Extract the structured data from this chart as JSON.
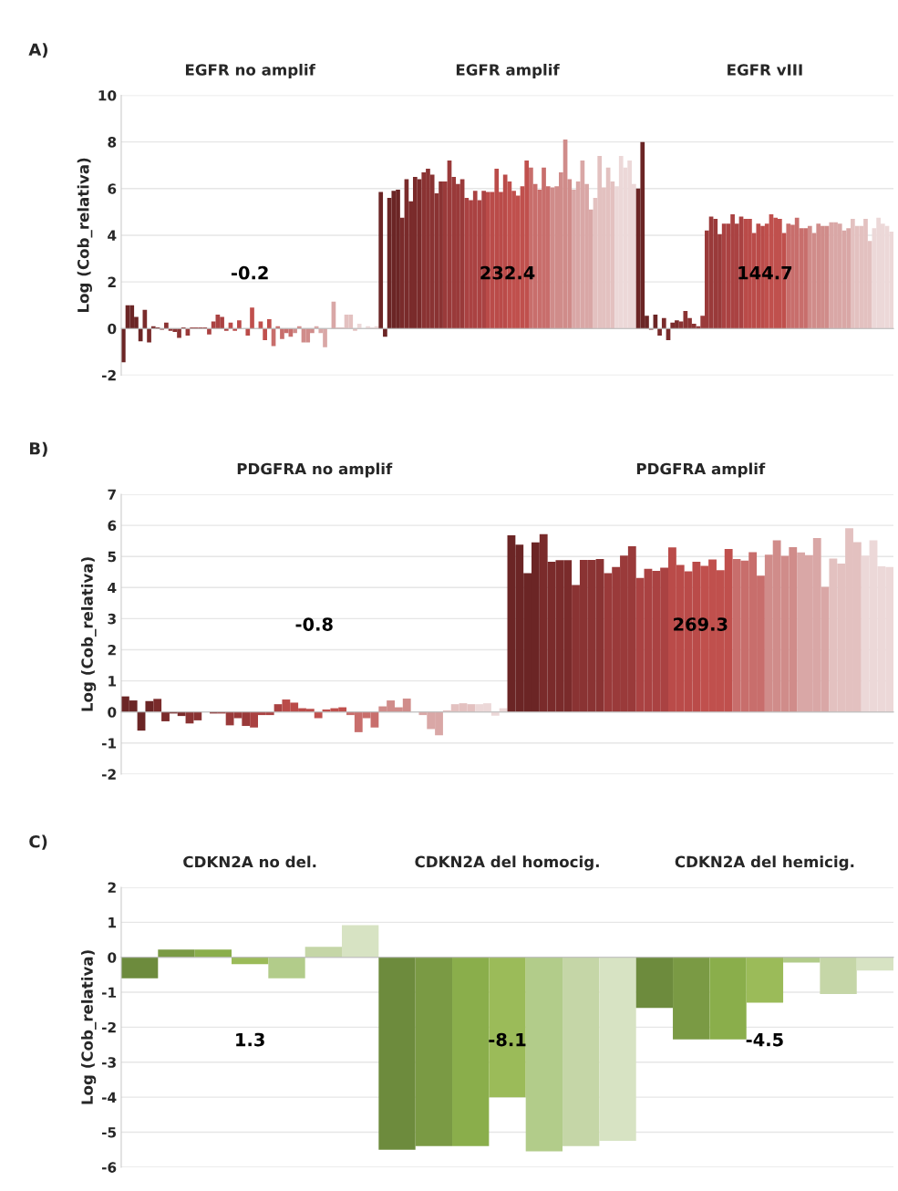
{
  "chart_data": [
    {
      "type": "bar",
      "title": "A)",
      "ylabel": "Log (Cob_relativa)",
      "ylim": [
        -2,
        10
      ],
      "yticks": [
        -2,
        0,
        2,
        4,
        6,
        8,
        10
      ],
      "grid": "y",
      "tick_labels": "y",
      "categories": [
        null,
        null,
        null,
        null,
        null,
        null,
        null,
        null,
        null,
        null,
        null,
        null,
        null,
        null,
        null,
        null,
        null,
        null,
        null,
        null,
        null,
        null,
        null,
        null,
        null,
        null,
        null,
        null,
        null,
        null,
        null,
        null,
        null,
        null,
        null,
        null,
        null,
        null,
        null,
        null,
        null,
        null,
        null,
        null,
        null,
        null,
        null,
        null,
        null,
        null,
        null,
        null,
        null,
        null,
        null,
        null,
        null,
        null,
        null,
        null,
        null,
        null,
        null,
        null,
        null,
        null,
        null,
        null,
        null,
        null,
        null,
        null,
        null,
        null,
        null,
        null,
        null,
        null,
        null,
        null,
        null,
        null,
        null,
        null,
        null,
        null,
        null,
        null,
        null,
        null,
        null,
        null,
        null,
        null,
        null,
        null,
        null,
        null,
        null,
        null,
        null,
        null,
        null,
        null,
        null,
        null,
        null,
        null,
        null,
        null,
        null,
        null,
        null,
        null,
        null,
        null,
        null,
        null,
        null,
        null,
        null,
        null,
        null,
        null,
        null,
        null,
        null,
        null,
        null,
        null,
        null,
        null,
        null,
        null,
        null,
        null,
        null,
        null,
        null,
        null,
        null,
        null,
        null,
        null,
        null,
        null,
        null,
        null,
        null,
        null,
        null,
        null,
        null,
        null,
        null,
        null,
        null,
        null,
        null,
        null,
        null,
        null,
        null,
        null,
        null,
        null,
        null,
        null,
        null,
        null,
        null,
        null,
        null,
        null,
        null,
        null,
        null,
        null,
        null,
        null
      ],
      "values": [
        -1.45,
        1.0,
        1.0,
        0.5,
        -0.55,
        0.8,
        -0.6,
        0.1,
        0.05,
        -0.05,
        0.25,
        -0.1,
        -0.15,
        -0.4,
        0.05,
        -0.3,
        0.05,
        0.05,
        0.05,
        0.05,
        -0.25,
        0.3,
        0.6,
        0.5,
        -0.1,
        0.25,
        -0.1,
        0.35,
        0.0,
        -0.3,
        0.9,
        0.0,
        0.3,
        -0.5,
        0.4,
        -0.75,
        0.1,
        -0.45,
        -0.2,
        -0.35,
        -0.2,
        0.1,
        -0.6,
        -0.6,
        -0.2,
        0.1,
        -0.2,
        -0.8,
        0.0,
        1.15,
        0.05,
        0.05,
        0.6,
        0.6,
        -0.1,
        0.2,
        0.0,
        0.1,
        0.05,
        0.1,
        5.85,
        -0.35,
        5.6,
        5.9,
        5.95,
        4.75,
        6.4,
        5.45,
        6.5,
        6.4,
        6.7,
        6.85,
        6.6,
        5.8,
        6.3,
        6.3,
        7.2,
        6.5,
        6.2,
        6.4,
        5.6,
        5.5,
        5.9,
        5.5,
        5.9,
        5.85,
        5.85,
        6.85,
        5.85,
        6.6,
        6.3,
        5.9,
        5.7,
        6.1,
        7.2,
        6.9,
        6.2,
        5.95,
        6.9,
        6.1,
        6.05,
        6.1,
        6.7,
        8.1,
        6.4,
        5.95,
        6.3,
        7.2,
        6.2,
        5.1,
        5.6,
        7.4,
        6.05,
        6.9,
        6.3,
        6.1,
        7.4,
        6.9,
        7.2,
        6.2,
        6.0,
        8.0,
        0.55,
        -0.05,
        0.6,
        -0.3,
        0.45,
        -0.5,
        0.25,
        0.35,
        0.3,
        0.75,
        0.45,
        0.2,
        0.1,
        0.55,
        4.2,
        4.8,
        4.7,
        4.05,
        4.5,
        4.5,
        4.9,
        4.5,
        4.8,
        4.7,
        4.7,
        4.1,
        4.5,
        4.4,
        4.5,
        4.9,
        4.75,
        4.7,
        4.1,
        4.5,
        4.45,
        4.75,
        4.3,
        4.3,
        4.4,
        4.1,
        4.5,
        4.4,
        4.4,
        4.55,
        4.55,
        4.5,
        4.2,
        4.3,
        4.7,
        4.4,
        4.4,
        4.7,
        3.75,
        4.3,
        4.75,
        4.5,
        4.4,
        4.15
      ],
      "colors": [
        "#6b2525",
        "#6b2525",
        "#6b2525",
        "#6b2525",
        "#6b2525",
        "#7a2b2b",
        "#7a2b2b",
        "#7a2b2b",
        "#7a2b2b",
        "#7a2b2b",
        "#8a3333",
        "#8a3333",
        "#8a3333",
        "#8a3333",
        "#8a3333",
        "#9a3a3a",
        "#9a3a3a",
        "#9a3a3a",
        "#9a3a3a",
        "#9a3a3a",
        "#aa4242",
        "#aa4242",
        "#aa4242",
        "#aa4242",
        "#aa4242",
        "#ba4b49",
        "#ba4b49",
        "#ba4b49",
        "#ba4b49",
        "#ba4b49",
        "#c0504d",
        "#c0504d",
        "#c0504d",
        "#c0504d",
        "#c0504d",
        "#c86e6c",
        "#c86e6c",
        "#c86e6c",
        "#c86e6c",
        "#c86e6c",
        "#d08c8a",
        "#d08c8a",
        "#d08c8a",
        "#d08c8a",
        "#d08c8a",
        "#d9a7a6",
        "#d9a7a6",
        "#d9a7a6",
        "#d9a7a6",
        "#d9a7a6",
        "#e3c1c0",
        "#e3c1c0",
        "#e3c1c0",
        "#e3c1c0",
        "#e3c1c0",
        "#ecd8d8",
        "#ecd8d8",
        "#ecd8d8",
        "#ecd8d8",
        "#ecd8d8",
        "#6b2525",
        "#6b2525",
        "#6b2525",
        "#6b2525",
        "#6b2525",
        "#7a2b2b",
        "#7a2b2b",
        "#7a2b2b",
        "#7a2b2b",
        "#7a2b2b",
        "#8a3333",
        "#8a3333",
        "#8a3333",
        "#8a3333",
        "#8a3333",
        "#9a3a3a",
        "#9a3a3a",
        "#9a3a3a",
        "#9a3a3a",
        "#9a3a3a",
        "#aa4242",
        "#aa4242",
        "#aa4242",
        "#aa4242",
        "#aa4242",
        "#ba4b49",
        "#ba4b49",
        "#ba4b49",
        "#ba4b49",
        "#ba4b49",
        "#c0504d",
        "#c0504d",
        "#c0504d",
        "#c0504d",
        "#c0504d",
        "#c86e6c",
        "#c86e6c",
        "#c86e6c",
        "#c86e6c",
        "#c86e6c",
        "#d08c8a",
        "#d08c8a",
        "#d08c8a",
        "#d08c8a",
        "#d08c8a",
        "#d9a7a6",
        "#d9a7a6",
        "#d9a7a6",
        "#d9a7a6",
        "#d9a7a6",
        "#e3c1c0",
        "#e3c1c0",
        "#e3c1c0",
        "#e3c1c0",
        "#e3c1c0",
        "#ecd8d8",
        "#ecd8d8",
        "#ecd8d8",
        "#ecd8d8",
        "#ecd8d8",
        "#6b2525",
        "#6b2525",
        "#6b2525",
        "#6b2525",
        "#6b2525",
        "#7a2b2b",
        "#7a2b2b",
        "#7a2b2b",
        "#7a2b2b",
        "#7a2b2b",
        "#8a3333",
        "#8a3333",
        "#8a3333",
        "#8a3333",
        "#8a3333",
        "#9a3a3a",
        "#9a3a3a",
        "#9a3a3a",
        "#9a3a3a",
        "#9a3a3a",
        "#aa4242",
        "#aa4242",
        "#aa4242",
        "#aa4242",
        "#aa4242",
        "#ba4b49",
        "#ba4b49",
        "#ba4b49",
        "#ba4b49",
        "#ba4b49",
        "#c0504d",
        "#c0504d",
        "#c0504d",
        "#c0504d",
        "#c0504d",
        "#c86e6c",
        "#c86e6c",
        "#c86e6c",
        "#c86e6c",
        "#c86e6c",
        "#d08c8a",
        "#d08c8a",
        "#d08c8a",
        "#d08c8a",
        "#d08c8a",
        "#d9a7a6",
        "#d9a7a6",
        "#d9a7a6",
        "#d9a7a6",
        "#d9a7a6",
        "#e3c1c0",
        "#e3c1c0",
        "#e3c1c0",
        "#e3c1c0",
        "#e3c1c0",
        "#ecd8d8",
        "#ecd8d8",
        "#ecd8d8",
        "#ecd8d8",
        "#ecd8d8"
      ],
      "annotations": [
        "EGFR no amplif",
        "EGFR amplif",
        "EGFR vIII",
        "-0.2",
        "232.4",
        "144.7"
      ]
    },
    {
      "type": "bar",
      "title": "B)",
      "ylabel": "Log (Cob_relativa)",
      "ylim": [
        -2,
        7
      ],
      "yticks": [
        -2,
        -1,
        0,
        1,
        2,
        3,
        4,
        5,
        6,
        7
      ],
      "grid": "y",
      "tick_labels": "y",
      "categories": [
        null,
        null,
        null,
        null,
        null,
        null,
        null,
        null,
        null,
        null,
        null,
        null,
        null,
        null,
        null,
        null,
        null,
        null,
        null,
        null,
        null,
        null,
        null,
        null,
        null,
        null,
        null,
        null,
        null,
        null,
        null,
        null,
        null,
        null,
        null,
        null,
        null,
        null,
        null,
        null,
        null,
        null,
        null,
        null,
        null,
        null,
        null,
        null,
        null,
        null,
        null,
        null,
        null,
        null,
        null,
        null,
        null,
        null,
        null,
        null,
        null,
        null,
        null,
        null,
        null,
        null,
        null,
        null,
        null,
        null,
        null,
        null,
        null,
        null,
        null,
        null,
        null,
        null,
        null,
        null,
        null,
        null,
        null,
        null,
        null,
        null,
        null,
        null,
        null,
        null,
        null,
        null,
        null,
        null,
        null,
        null
      ],
      "values": [
        0.5,
        0.37,
        -0.6,
        0.35,
        0.42,
        -0.3,
        -0.05,
        -0.13,
        -0.37,
        -0.27,
        0.0,
        -0.05,
        -0.05,
        -0.43,
        -0.2,
        -0.45,
        -0.5,
        -0.1,
        -0.1,
        0.25,
        0.4,
        0.3,
        0.12,
        0.1,
        -0.2,
        0.08,
        0.12,
        0.15,
        -0.1,
        -0.65,
        -0.2,
        -0.5,
        0.18,
        0.37,
        0.15,
        0.43,
        0.0,
        -0.1,
        -0.55,
        -0.75,
        0.05,
        0.25,
        0.28,
        0.25,
        0.25,
        0.28,
        -0.12,
        0.12,
        5.68,
        5.38,
        4.46,
        5.45,
        5.72,
        4.83,
        4.88,
        4.88,
        4.08,
        4.89,
        4.89,
        4.92,
        4.46,
        4.66,
        5.03,
        5.33,
        4.31,
        4.6,
        4.54,
        4.64,
        5.29,
        4.73,
        4.52,
        4.83,
        4.7,
        4.9,
        4.56,
        5.24,
        4.92,
        4.87,
        5.14,
        4.38,
        5.06,
        5.52,
        5.02,
        5.3,
        5.13,
        5.04,
        5.59,
        4.02,
        4.93,
        4.77,
        5.91,
        5.46,
        5.03,
        5.52,
        4.68,
        4.66
      ],
      "colors": [
        "#6b2525",
        "#6b2525",
        "#6b2525",
        "#6b2525",
        "#7a2b2b",
        "#7a2b2b",
        "#7a2b2b",
        "#7a2b2b",
        "#8a3333",
        "#8a3333",
        "#8a3333",
        "#8a3333",
        "#9a3a3a",
        "#9a3a3a",
        "#9a3a3a",
        "#9a3a3a",
        "#aa4242",
        "#aa4242",
        "#aa4242",
        "#aa4242",
        "#ba4b49",
        "#ba4b49",
        "#ba4b49",
        "#ba4b49",
        "#c0504d",
        "#c0504d",
        "#c0504d",
        "#c0504d",
        "#c86e6c",
        "#c86e6c",
        "#c86e6c",
        "#c86e6c",
        "#d08c8a",
        "#d08c8a",
        "#d08c8a",
        "#d08c8a",
        "#d9a7a6",
        "#d9a7a6",
        "#d9a7a6",
        "#d9a7a6",
        "#e3c1c0",
        "#e3c1c0",
        "#e3c1c0",
        "#e3c1c0",
        "#ecd8d8",
        "#ecd8d8",
        "#ecd8d8",
        "#ecd8d8",
        "#6b2525",
        "#6b2525",
        "#6b2525",
        "#6b2525",
        "#7a2b2b",
        "#7a2b2b",
        "#7a2b2b",
        "#7a2b2b",
        "#8a3333",
        "#8a3333",
        "#8a3333",
        "#8a3333",
        "#9a3a3a",
        "#9a3a3a",
        "#9a3a3a",
        "#9a3a3a",
        "#aa4242",
        "#aa4242",
        "#aa4242",
        "#aa4242",
        "#ba4b49",
        "#ba4b49",
        "#ba4b49",
        "#ba4b49",
        "#c0504d",
        "#c0504d",
        "#c0504d",
        "#c0504d",
        "#c86e6c",
        "#c86e6c",
        "#c86e6c",
        "#c86e6c",
        "#d08c8a",
        "#d08c8a",
        "#d08c8a",
        "#d08c8a",
        "#d9a7a6",
        "#d9a7a6",
        "#d9a7a6",
        "#d9a7a6",
        "#e3c1c0",
        "#e3c1c0",
        "#e3c1c0",
        "#e3c1c0",
        "#ecd8d8",
        "#ecd8d8",
        "#ecd8d8",
        "#ecd8d8"
      ],
      "annotations": [
        "PDGFRA no amplif",
        "PDGFRA amplif",
        "-0.8",
        "269.3"
      ]
    },
    {
      "type": "bar",
      "title": "C)",
      "ylabel": "Log (Cob_relativa)",
      "ylim": [
        -6,
        2
      ],
      "yticks": [
        -6,
        -5,
        -4,
        -3,
        -2,
        -1,
        0,
        1,
        2
      ],
      "grid": "y",
      "tick_labels": "y",
      "categories": [
        null,
        null,
        null,
        null,
        null,
        null,
        null,
        null,
        null,
        null,
        null,
        null,
        null,
        null,
        null,
        null,
        null,
        null,
        null,
        null,
        null
      ],
      "values": [
        -0.6,
        0.22,
        0.22,
        -0.2,
        -0.6,
        0.3,
        0.92,
        -5.5,
        -5.4,
        -5.4,
        -4.0,
        -5.55,
        -5.4,
        -5.25,
        -1.45,
        -2.35,
        -2.35,
        -1.3,
        -0.15,
        -1.05,
        -0.38
      ],
      "colors": [
        "#6d8b3d",
        "#7a9a44",
        "#8aae4b",
        "#9bbb59",
        "#b2cc8a",
        "#c5d6a7",
        "#d7e3c3",
        "#6d8b3d",
        "#7a9a44",
        "#8aae4b",
        "#9bbb59",
        "#b2cc8a",
        "#c5d6a7",
        "#d7e3c3",
        "#6d8b3d",
        "#7a9a44",
        "#8aae4b",
        "#9bbb59",
        "#b2cc8a",
        "#c5d6a7",
        "#d7e3c3"
      ],
      "annotations": [
        "CDKN2A no del.",
        "CDKN2A del homocig.",
        "CDKN2A del hemicig.",
        "1.3",
        "-8.1",
        "-4.5"
      ]
    }
  ]
}
